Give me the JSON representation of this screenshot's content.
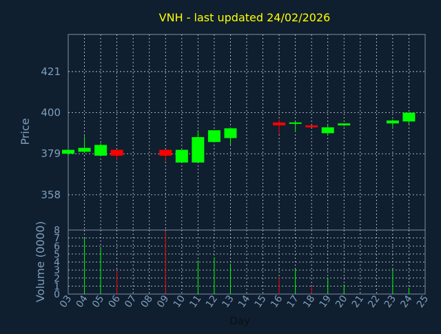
{
  "colors": {
    "background": "#0f1f2f",
    "plot_border": "#7f8fa8",
    "grid": "#d8dde6",
    "title": "#ffff00",
    "axis_text": "#7f9fbf",
    "label_text": "#7f9fbf",
    "up": "#00ff00",
    "down": "#ff0000"
  },
  "chart_data": [
    {
      "type": "candlestick",
      "title": "VNH - last updated 24/02/2026",
      "ylabel": "Price",
      "ylim": [
        340,
        440
      ],
      "yticks": [
        "358",
        "379",
        "400",
        "421"
      ],
      "grid": true,
      "categories": [
        "03",
        "04",
        "05",
        "06",
        "07",
        "08",
        "09",
        "10",
        "11",
        "12",
        "13",
        "14",
        "15",
        "16",
        "17",
        "18",
        "19",
        "20",
        "21",
        "22",
        "23",
        "24",
        "25"
      ],
      "candles": [
        {
          "day": "03",
          "open": 379,
          "close": 381,
          "high": 381,
          "low": 378
        },
        {
          "day": "04",
          "open": 380,
          "close": 382,
          "high": 388,
          "low": 379.5
        },
        {
          "day": "05",
          "open": 378,
          "close": 383.5,
          "high": 384.5,
          "low": 378
        },
        {
          "day": "06",
          "open": 381,
          "close": 378,
          "high": 381,
          "low": 375.5
        },
        {
          "day": "09",
          "open": 381,
          "close": 378,
          "high": 381,
          "low": 375
        },
        {
          "day": "10",
          "open": 374.5,
          "close": 381,
          "high": 381,
          "low": 374.5
        },
        {
          "day": "11",
          "open": 374.5,
          "close": 387.5,
          "high": 391,
          "low": 374.5
        },
        {
          "day": "12",
          "open": 385,
          "close": 391,
          "high": 391,
          "low": 385
        },
        {
          "day": "13",
          "open": 387,
          "close": 392,
          "high": 392.5,
          "low": 383.5
        },
        {
          "day": "16",
          "open": 395,
          "close": 393.5,
          "high": 396.5,
          "low": 389
        },
        {
          "day": "17",
          "open": 394.5,
          "close": 395,
          "high": 395.5,
          "low": 390
        },
        {
          "day": "18",
          "open": 393.5,
          "close": 392.5,
          "high": 393.5,
          "low": 392.5
        },
        {
          "day": "19",
          "open": 389.5,
          "close": 392.5,
          "high": 393.5,
          "low": 388.5
        },
        {
          "day": "20",
          "open": 393.5,
          "close": 394.5,
          "high": 394.5,
          "low": 393
        },
        {
          "day": "23",
          "open": 394.5,
          "close": 396,
          "high": 396.5,
          "low": 392
        },
        {
          "day": "24",
          "open": 395.5,
          "close": 400,
          "high": 400,
          "low": 394
        }
      ]
    },
    {
      "type": "bar",
      "xlabel": "Day",
      "ylabel": "Volume (0000)",
      "ylim": [
        0,
        8
      ],
      "yticks": [
        "0",
        "1",
        "2",
        "3",
        "4",
        "5",
        "6",
        "7",
        "8"
      ],
      "grid": true,
      "categories": [
        "03",
        "04",
        "05",
        "06",
        "07",
        "08",
        "09",
        "10",
        "11",
        "12",
        "13",
        "14",
        "15",
        "16",
        "17",
        "18",
        "19",
        "20",
        "21",
        "22",
        "23",
        "24",
        "25"
      ],
      "volumes": [
        {
          "day": "04",
          "value": 7.0,
          "direction": "up"
        },
        {
          "day": "05",
          "value": 5.7,
          "direction": "up"
        },
        {
          "day": "06",
          "value": 2.9,
          "direction": "down"
        },
        {
          "day": "09",
          "value": 7.9,
          "direction": "down"
        },
        {
          "day": "11",
          "value": 4.2,
          "direction": "up"
        },
        {
          "day": "12",
          "value": 4.6,
          "direction": "up"
        },
        {
          "day": "13",
          "value": 3.8,
          "direction": "up"
        },
        {
          "day": "16",
          "value": 2.1,
          "direction": "down"
        },
        {
          "day": "17",
          "value": 3.2,
          "direction": "up"
        },
        {
          "day": "18",
          "value": 0.9,
          "direction": "down"
        },
        {
          "day": "19",
          "value": 2.0,
          "direction": "up"
        },
        {
          "day": "20",
          "value": 1.2,
          "direction": "up"
        },
        {
          "day": "23",
          "value": 3.1,
          "direction": "up"
        },
        {
          "day": "24",
          "value": 0.8,
          "direction": "up"
        }
      ]
    }
  ]
}
